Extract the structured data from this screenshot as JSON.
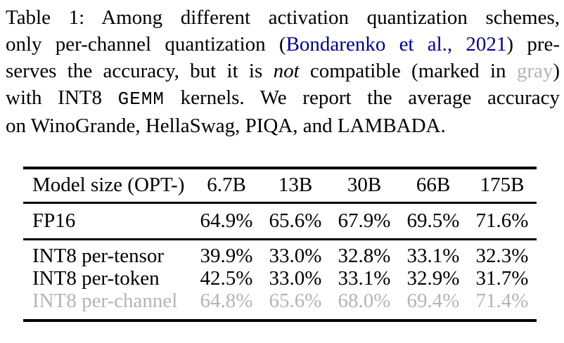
{
  "caption": {
    "line1": "Table 1: Among different activation quantization schemes,",
    "line2_pre": "only per-channel quantization (",
    "line2_cite": "Bondarenko et al., 2021",
    "line2_post": ") pre-",
    "line3_pre": "serves the accuracy, but it is ",
    "line3_italic": "not",
    "line3_mid": " compatible (marked in ",
    "line3_gray": "gray",
    "line3_close": ")",
    "line4_pre": "with INT8 ",
    "line4_code": "GEMM",
    "line4_post": " kernels. We report the average accuracy",
    "line5": "on WinoGrande, HellaSwag, PIQA, and LAMBADA."
  },
  "colors": {
    "text": "#000000",
    "citation_blue": "#00008b",
    "muted_gray": "#b4b4b4"
  },
  "table": {
    "header": [
      "Model size (OPT-)",
      "6.7B",
      "13B",
      "30B",
      "66B",
      "175B"
    ],
    "rows": [
      {
        "label": "FP16",
        "muted": false,
        "values": [
          "64.9%",
          "65.6%",
          "67.9%",
          "69.5%",
          "71.6%"
        ]
      },
      {
        "label": "INT8 per-tensor",
        "muted": false,
        "values": [
          "39.9%",
          "33.0%",
          "32.8%",
          "33.1%",
          "32.3%"
        ]
      },
      {
        "label": "INT8 per-token",
        "muted": false,
        "values": [
          "42.5%",
          "33.0%",
          "33.1%",
          "32.9%",
          "31.7%"
        ]
      },
      {
        "label": "INT8 per-channel",
        "muted": true,
        "values": [
          "64.8%",
          "65.6%",
          "68.0%",
          "69.4%",
          "71.4%"
        ]
      }
    ]
  }
}
